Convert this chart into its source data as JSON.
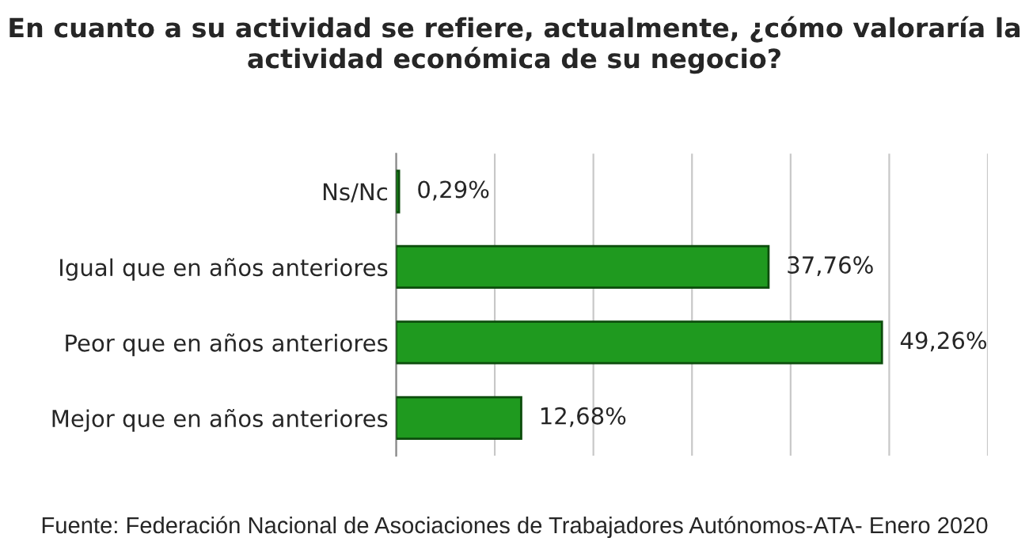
{
  "chart_data": {
    "type": "bar",
    "orientation": "horizontal",
    "title": "En cuanto a su actividad se refiere, actualmente, ¿cómo valoraría la actividad económica de su negocio?",
    "categories": [
      "Ns/Nc",
      "Igual que en años anteriores",
      "Peor que en años anteriores",
      "Mejor que en años anteriores"
    ],
    "values": [
      0.29,
      37.76,
      49.26,
      12.68
    ],
    "value_labels": [
      "0,29%",
      "37,76%",
      "49,26%",
      "12,68%"
    ],
    "color": "#1f9a1f",
    "xlim": [
      0,
      60
    ],
    "xticks": [
      {
        "value": 0,
        "label": null
      },
      {
        "value": 10,
        "label": null
      },
      {
        "value": 20,
        "label": null
      },
      {
        "value": 30,
        "label": null
      },
      {
        "value": 40,
        "label": null
      },
      {
        "value": 50,
        "label": null
      },
      {
        "value": 60,
        "label": null
      }
    ],
    "grid": "x",
    "tick_labels": "y",
    "legend": false,
    "annotations": [
      "Fuente: Federación Nacional de Asociaciones de Trabajadores Autónomos-ATA- Enero 2020"
    ]
  }
}
